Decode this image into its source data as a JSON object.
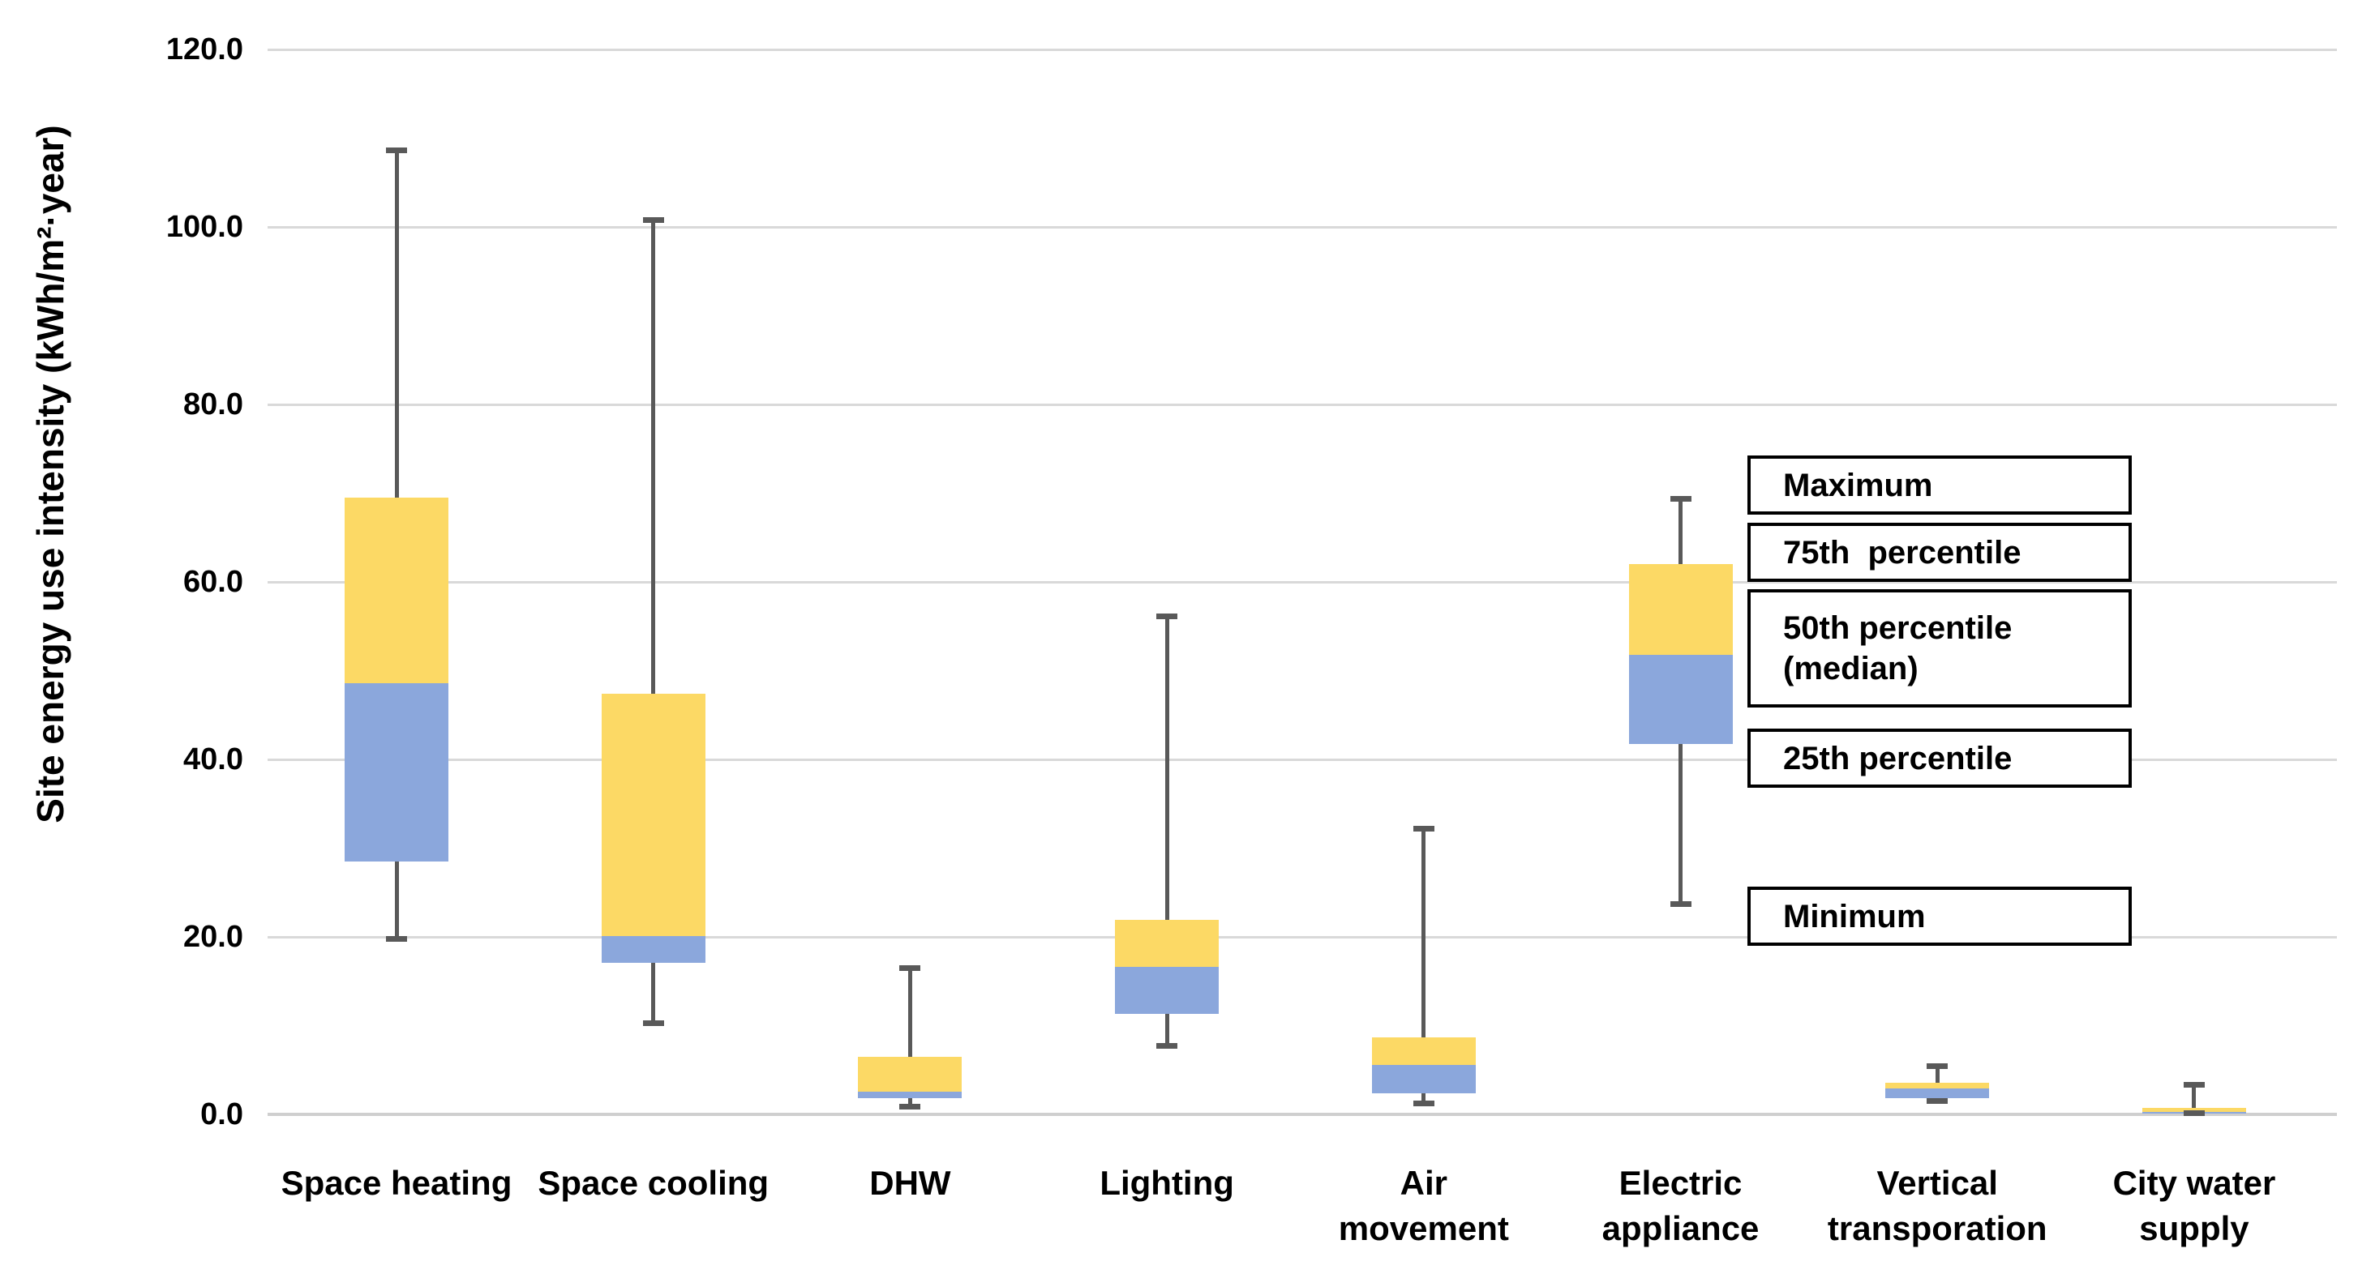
{
  "chart_data": {
    "type": "box",
    "title": "",
    "ylabel": "Site energy use intensity (kWh/m²·year)",
    "xlabel": "",
    "ylim": [
      0,
      120
    ],
    "ytick_step": 20,
    "ytick_labels": [
      "0.0",
      "20.0",
      "40.0",
      "60.0",
      "80.0",
      "100.0",
      "120.0"
    ],
    "grid": true,
    "legend_position": "right-inside",
    "categories": [
      "Space heating",
      "Space cooling",
      "DHW",
      "Lighting",
      "Air movement",
      "Electric appliance",
      "Vertical transporation",
      "City water supply"
    ],
    "category_label_lines": [
      [
        "Space heating"
      ],
      [
        "Space cooling"
      ],
      [
        "DHW"
      ],
      [
        "Lighting"
      ],
      [
        "Air",
        "movement"
      ],
      [
        "Electric",
        "appliance"
      ],
      [
        "Vertical",
        "transporation"
      ],
      [
        "City water",
        "supply"
      ]
    ],
    "series": [
      {
        "name": "Space heating",
        "min": 19.8,
        "q1": 28.5,
        "median": 48.6,
        "q3": 69.5,
        "max": 108.6
      },
      {
        "name": "Space cooling",
        "min": 10.3,
        "q1": 17.1,
        "median": 20.1,
        "q3": 47.4,
        "max": 100.8
      },
      {
        "name": "DHW",
        "min": 0.9,
        "q1": 1.8,
        "median": 2.6,
        "q3": 6.5,
        "max": 16.5
      },
      {
        "name": "Lighting",
        "min": 7.7,
        "q1": 11.3,
        "median": 16.6,
        "q3": 21.9,
        "max": 56.1
      },
      {
        "name": "Air movement",
        "min": 1.2,
        "q1": 2.4,
        "median": 5.6,
        "q3": 8.7,
        "max": 32.2
      },
      {
        "name": "Electric appliance",
        "min": 23.7,
        "q1": 41.7,
        "median": 51.8,
        "q3": 62.0,
        "max": 69.4
      },
      {
        "name": "Vertical transporation",
        "min": 1.5,
        "q1": 1.8,
        "median": 2.9,
        "q3": 3.6,
        "max": 5.4
      },
      {
        "name": "City water supply",
        "min": 0.1,
        "q1": 0.1,
        "median": 0.3,
        "q3": 0.7,
        "max": 3.3
      }
    ],
    "callouts": [
      {
        "label": "Maximum",
        "line_texts": [
          "Maximum"
        ],
        "at_value": 70.9
      },
      {
        "label": "75th  percentile",
        "line_texts": [
          "75th  percentile"
        ],
        "at_value": 63.3
      },
      {
        "label": "50th percentile (median)",
        "line_texts": [
          "50th percentile",
          "(median)"
        ],
        "at_value": 52.5
      },
      {
        "label": "25th percentile",
        "line_texts": [
          "25th percentile"
        ],
        "at_value": 40.1
      },
      {
        "label": "Minimum",
        "line_texts": [
          "Minimum"
        ],
        "at_value": 22.3
      }
    ],
    "colors": {
      "box_upper_50_75": "#FCD965",
      "box_lower_25_50": "#8BA7DC",
      "whisker": "#595959",
      "gridline": "#D9D9D9",
      "text": "#000000",
      "background": "#FFFFFF"
    }
  }
}
